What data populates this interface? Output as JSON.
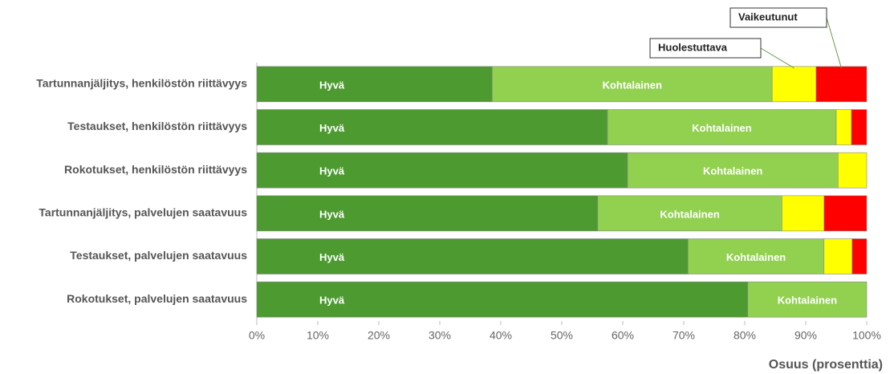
{
  "chart_data": {
    "type": "stacked_barh",
    "categories": [
      "Tartunnanjäljitys, henkilöstön riittävyys",
      "Testaukset, henkilöstön riittävyys",
      "Rokotukset, henkilöstön riittävyys",
      "Tartunnanjäljitys, palvelujen saatavuus",
      "Testaukset, palvelujen saatavuus",
      "Rokotukset, palvelujen saatavuus"
    ],
    "series": [
      {
        "name": "Hyvä",
        "color": "#4d9a30",
        "values": [
          38.6,
          57.5,
          60.8,
          55.9,
          70.7,
          80.5
        ]
      },
      {
        "name": "Kohtalainen",
        "color": "#92d050",
        "values": [
          45.9,
          37.5,
          34.5,
          30.2,
          22.3,
          19.5
        ]
      },
      {
        "name": "Huolestuttava",
        "color": "#ffff00",
        "values": [
          7.2,
          2.5,
          4.7,
          6.9,
          4.6,
          0
        ]
      },
      {
        "name": "Vaikeutunut",
        "color": "#ff0000",
        "values": [
          8.3,
          2.5,
          0,
          7.0,
          2.4,
          0
        ]
      }
    ],
    "xlim": [
      0,
      100
    ],
    "xticks": [
      {
        "value": 0,
        "label": "0%"
      },
      {
        "value": 10,
        "label": "10%"
      },
      {
        "value": 20,
        "label": "20%"
      },
      {
        "value": 30,
        "label": "30%"
      },
      {
        "value": 40,
        "label": "40%"
      },
      {
        "value": 50,
        "label": "50%"
      },
      {
        "value": 60,
        "label": "60%"
      },
      {
        "value": 70,
        "label": "70%"
      },
      {
        "value": 80,
        "label": "80%"
      },
      {
        "value": 90,
        "label": "90%"
      },
      {
        "value": 100,
        "label": "100%"
      }
    ],
    "xlabel": "Osuus (prosenttia)"
  }
}
